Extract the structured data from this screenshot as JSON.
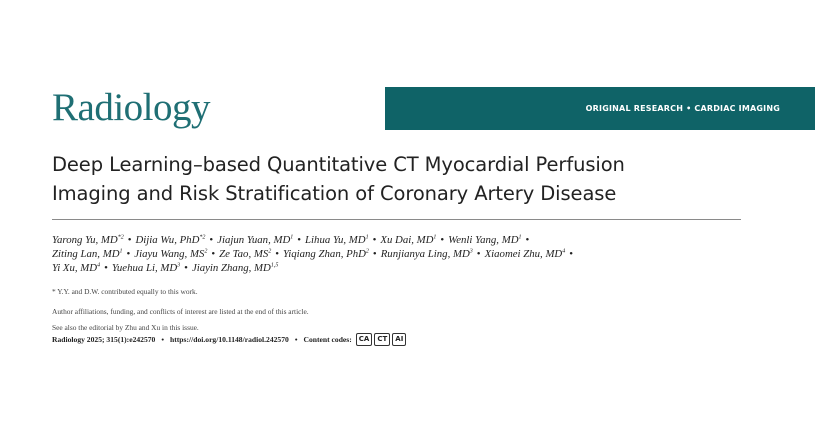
{
  "journal": {
    "name": "Radiology"
  },
  "banner": {
    "label": "ORIGINAL RESEARCH • CARDIAC IMAGING"
  },
  "article": {
    "title_line1": "Deep Learning–based Quantitative CT Myocardial Perfusion",
    "title_line2": "Imaging and Risk Stratification of Coronary Artery Disease"
  },
  "authors": [
    [
      {
        "name": "Yarong Yu, MD",
        "sup": "*2"
      },
      {
        "name": "Dijia Wu, PhD",
        "sup": "*2"
      },
      {
        "name": "Jiajun Yuan, MD",
        "sup": "1"
      },
      {
        "name": "Lihua Yu, MD",
        "sup": "1"
      },
      {
        "name": "Xu Dai, MD",
        "sup": "1"
      },
      {
        "name": "Wenli Yang, MD",
        "sup": "1"
      }
    ],
    [
      {
        "name": "Ziting Lan, MD",
        "sup": "1"
      },
      {
        "name": "Jiayu Wang, MS",
        "sup": "2"
      },
      {
        "name": "Ze Tao, MS",
        "sup": "2"
      },
      {
        "name": "Yiqiang Zhan, PhD",
        "sup": "2"
      },
      {
        "name": "Runjianya Ling, MD",
        "sup": "3"
      },
      {
        "name": "Xiaomei Zhu, MD",
        "sup": "4"
      }
    ],
    [
      {
        "name": "Yi Xu, MD",
        "sup": "4"
      },
      {
        "name": "Yuehua Li, MD",
        "sup": "3"
      },
      {
        "name": "Jiayin Zhang, MD",
        "sup": "1,5"
      }
    ]
  ],
  "author_separator": "•",
  "notes": {
    "equal_contribution": "* Y.Y. and D.W. contributed equally to this work.",
    "affiliations": "Author affiliations, funding, and conflicts of interest are listed at the end of this article.",
    "editorial": "See also the editorial by Zhu and Xu in this issue."
  },
  "citation": {
    "reference": "Radiology 2025; 315(1):e242570",
    "separator": "•",
    "doi": "https://doi.org/10.1148/radiol.242570",
    "content_codes_label": "Content codes:",
    "content_codes": [
      "CA",
      "CT",
      "AI"
    ]
  },
  "colors": {
    "brand_teal": "#1f6f74",
    "banner_bg": "#0f6367"
  }
}
